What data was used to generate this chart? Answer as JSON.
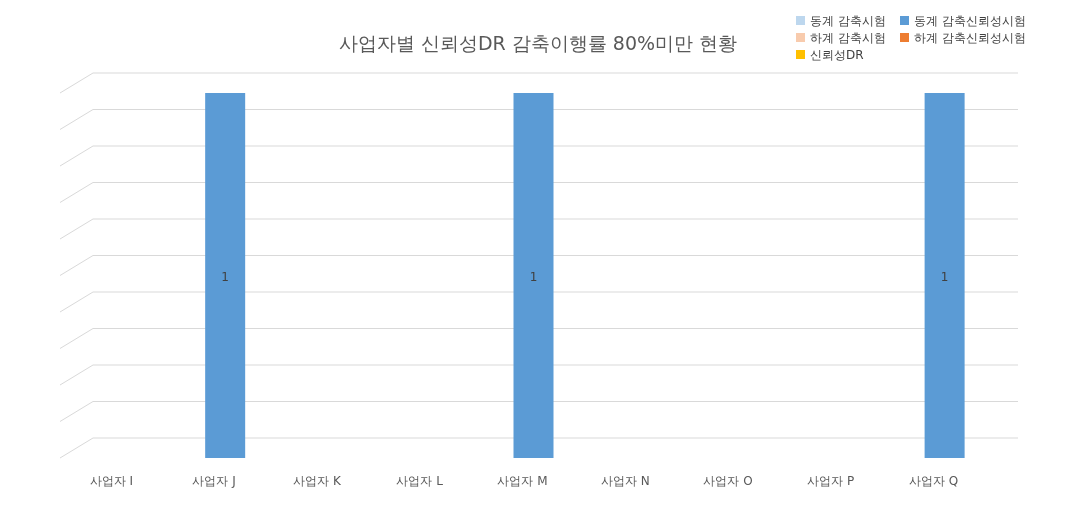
{
  "chart_data": {
    "type": "bar",
    "title": "사업자별 신뢰성DR 감축이행률 80%미만 현황",
    "data_labels": true,
    "grid": "y",
    "legend": "top right",
    "categories": [
      "사업자 I",
      "사업자 J",
      "사업자 K",
      "사업자 L",
      "사업자 M",
      "사업자 N",
      "사업자 O",
      "사업자 P",
      "사업자 Q"
    ],
    "series": [
      {
        "name": "동계 감축시험",
        "color": "#bdd7ee",
        "values": [
          null,
          null,
          null,
          null,
          null,
          null,
          null,
          null,
          null
        ]
      },
      {
        "name": "동계 감축신뢰성시험",
        "color": "#5b9bd5",
        "values": [
          null,
          1,
          null,
          null,
          1,
          null,
          null,
          null,
          1
        ]
      },
      {
        "name": "하계 감축시험",
        "color": "#f8cbad",
        "values": [
          null,
          null,
          null,
          null,
          null,
          null,
          null,
          null,
          null
        ]
      },
      {
        "name": "하계 감축신뢰성시험",
        "color": "#ed7d31",
        "values": [
          null,
          null,
          null,
          null,
          null,
          null,
          null,
          null,
          null
        ]
      },
      {
        "name": "신뢰성DR",
        "color": "#ffc000",
        "values": [
          null,
          null,
          null,
          null,
          null,
          null,
          null,
          null,
          null
        ]
      }
    ]
  }
}
